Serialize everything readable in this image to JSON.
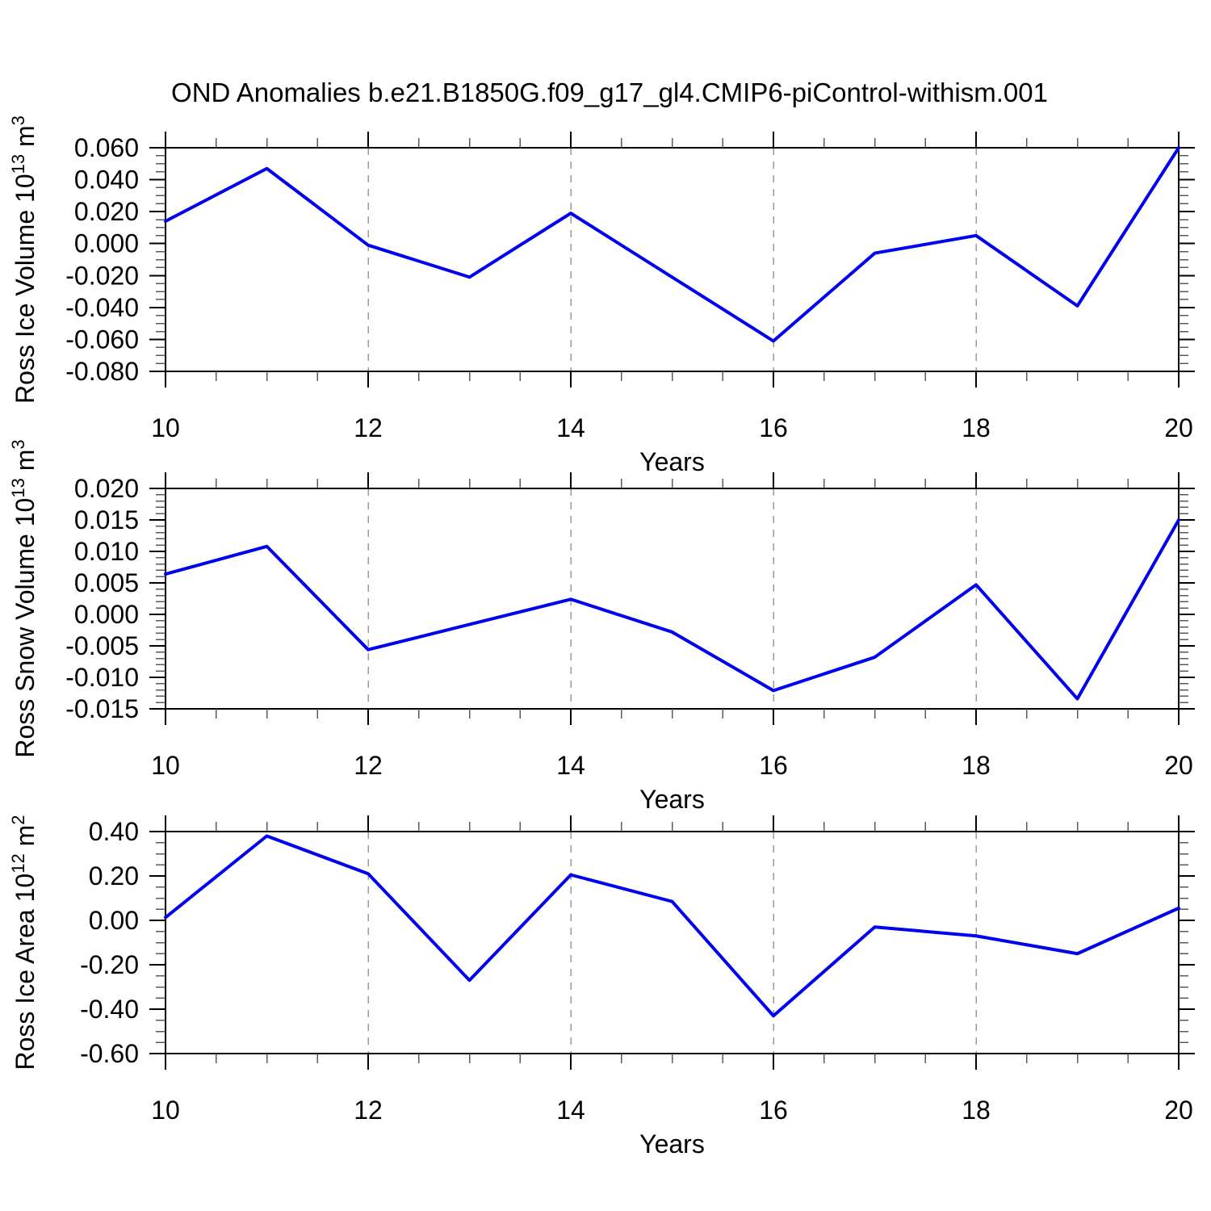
{
  "title": "OND Anomalies b.e21.B1850G.f09_g17_gl4.CMIP6-piControl-withism.001",
  "chart_data": [
    {
      "type": "line",
      "series_color": "#0000ee",
      "xlabel": "Years",
      "ylabel_parts": [
        {
          "t": "Ross Ice Volume 10"
        },
        {
          "t": "13",
          "sup": true
        },
        {
          "t": " m"
        },
        {
          "t": "3",
          "sup": true
        }
      ],
      "x": [
        10,
        11,
        12,
        13,
        14,
        15,
        16,
        17,
        18,
        19,
        20
      ],
      "values": [
        0.014,
        0.047,
        -0.001,
        -0.021,
        0.019,
        -0.021,
        -0.061,
        -0.006,
        0.005,
        -0.039,
        0.06
      ],
      "xlim": [
        10,
        20
      ],
      "ylim": [
        -0.08,
        0.06
      ],
      "ytick_step": 0.02,
      "ytick_labels": [
        "0.060",
        "0.040",
        "0.020",
        "0.000",
        "-0.020",
        "-0.040",
        "-0.060",
        "-0.080"
      ],
      "yminor_divisions": 4,
      "xticks": [
        10,
        12,
        14,
        16,
        18,
        20
      ],
      "xminor_step": 0.5,
      "grid_x": [
        12,
        14,
        16,
        18
      ],
      "grid": "dashed-vertical"
    },
    {
      "type": "line",
      "series_color": "#0000ee",
      "xlabel": "Years",
      "ylabel_parts": [
        {
          "t": "Ross Snow Volume 10"
        },
        {
          "t": "13",
          "sup": true
        },
        {
          "t": " m"
        },
        {
          "t": "3",
          "sup": true
        }
      ],
      "x": [
        10,
        11,
        12,
        13,
        14,
        15,
        16,
        17,
        18,
        19,
        20
      ],
      "values": [
        0.0064,
        0.0108,
        -0.0056,
        -0.0016,
        0.0024,
        -0.0028,
        -0.0121,
        -0.0068,
        0.0047,
        -0.0134,
        0.015
      ],
      "xlim": [
        10,
        20
      ],
      "ylim": [
        -0.015,
        0.02
      ],
      "ytick_step": 0.005,
      "ytick_labels": [
        "0.020",
        "0.015",
        "0.010",
        "0.005",
        "0.000",
        "-0.005",
        "-0.010",
        "-0.015"
      ],
      "yminor_divisions": 5,
      "xticks": [
        10,
        12,
        14,
        16,
        18,
        20
      ],
      "xminor_step": 0.5,
      "grid_x": [
        12,
        14,
        16,
        18
      ],
      "grid": "dashed-vertical"
    },
    {
      "type": "line",
      "series_color": "#0000ee",
      "xlabel": "Years",
      "ylabel_parts": [
        {
          "t": "Ross Ice Area 10"
        },
        {
          "t": "12",
          "sup": true
        },
        {
          "t": " m"
        },
        {
          "t": "2",
          "sup": true
        }
      ],
      "x": [
        10,
        11,
        12,
        13,
        14,
        15,
        16,
        17,
        18,
        19,
        20
      ],
      "values": [
        0.013,
        0.38,
        0.21,
        -0.27,
        0.205,
        0.085,
        -0.43,
        -0.03,
        -0.07,
        -0.15,
        0.055
      ],
      "xlim": [
        10,
        20
      ],
      "ylim": [
        -0.6,
        0.4
      ],
      "ytick_step": 0.2,
      "ytick_labels": [
        "0.40",
        "0.20",
        "0.00",
        "-0.20",
        "-0.40",
        "-0.60"
      ],
      "yminor_divisions": 4,
      "xticks": [
        10,
        12,
        14,
        16,
        18,
        20
      ],
      "xminor_step": 0.5,
      "grid_x": [
        12,
        14,
        16,
        18
      ],
      "grid": "dashed-vertical"
    }
  ]
}
